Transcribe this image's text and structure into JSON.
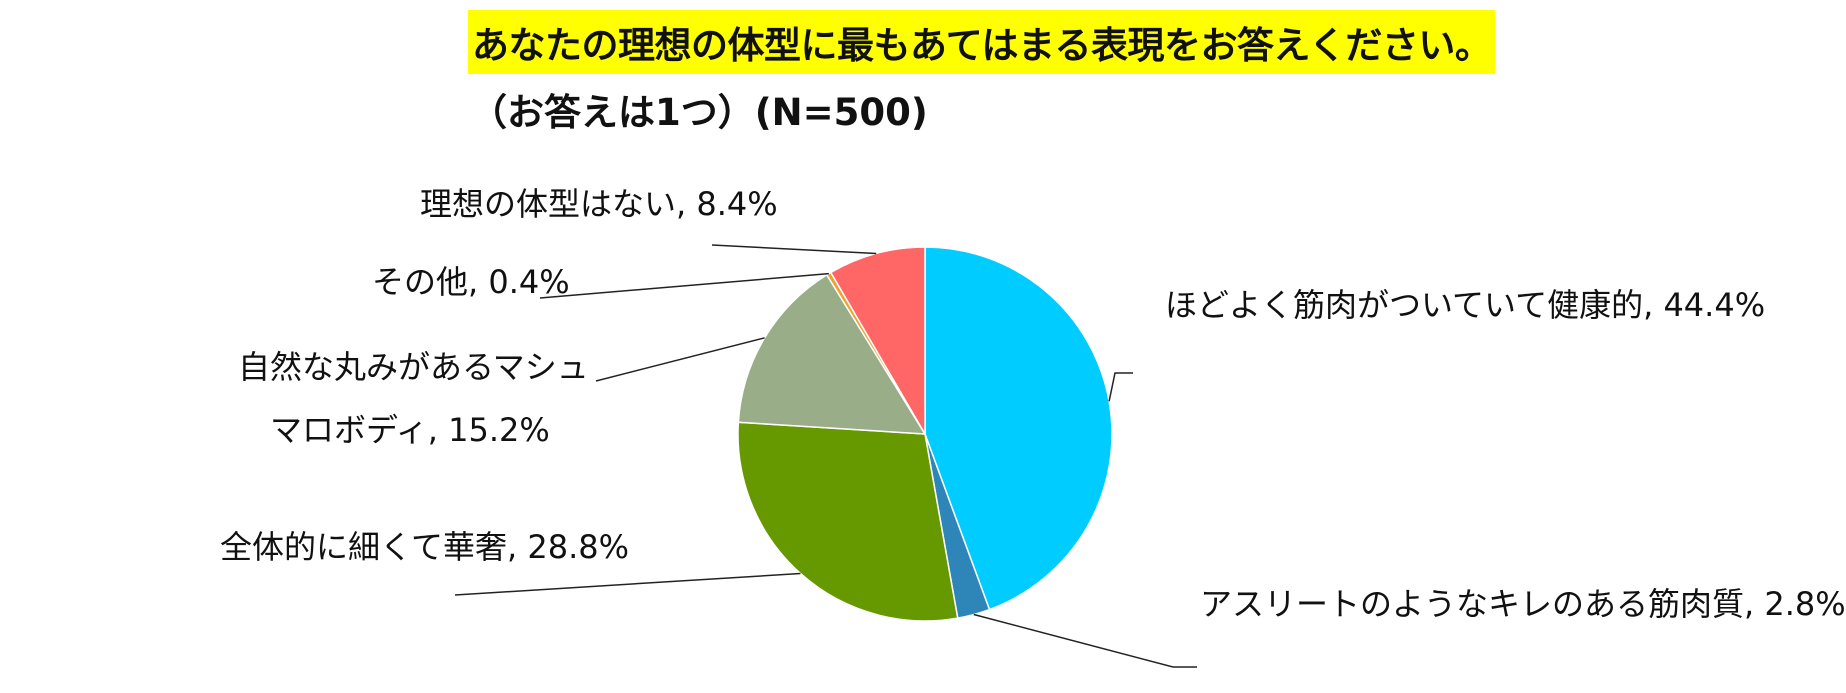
{
  "title": "あなたの理想の体型に最もあてはまる表現をお答えください。",
  "subtitle": "（お答えは1つ）(N=500)",
  "chart_data": {
    "type": "pie",
    "start": "top",
    "direction": "clockwise",
    "slices": [
      {
        "label": "ほどよく筋肉がついていて健康的",
        "value": 44.4,
        "value_label": "44.4%",
        "color": "#00ccff"
      },
      {
        "label": "アスリートのようなキレのある筋肉質",
        "value": 2.8,
        "value_label": "2.8%",
        "color": "#2e86b8"
      },
      {
        "label": "全体的に細くて華奢",
        "value": 28.8,
        "value_label": "28.8%",
        "color": "#669900"
      },
      {
        "label": "自然な丸みがあるマシュマロボディ",
        "label_line1": "自然な丸みがあるマシュ",
        "label_line2": "マロボディ",
        "value": 15.2,
        "value_label": "15.2%",
        "color": "#99ad88"
      },
      {
        "label": "その他",
        "value": 0.4,
        "value_label": "0.4%",
        "color": "#f0a030"
      },
      {
        "label": "理想の体型はない",
        "value": 8.4,
        "value_label": "8.4%",
        "color": "#ff6666"
      }
    ]
  }
}
